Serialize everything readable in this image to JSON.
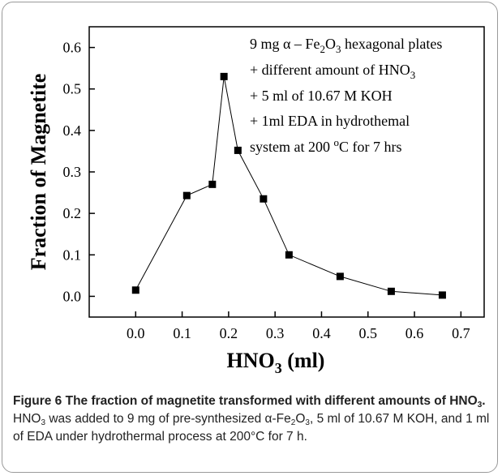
{
  "chart_data": {
    "type": "line",
    "xlabel": "HNO3 (ml)",
    "ylabel": "Fraction of Magnetite",
    "xlim": [
      -0.1,
      0.75
    ],
    "ylim": [
      -0.05,
      0.65
    ],
    "x_ticks": [
      "0.0",
      "0.1",
      "0.2",
      "0.3",
      "0.4",
      "0.5",
      "0.6",
      "0.7"
    ],
    "y_ticks": [
      "0.0",
      "0.1",
      "0.2",
      "0.3",
      "0.4",
      "0.5",
      "0.6"
    ],
    "x": [
      0.0,
      0.11,
      0.165,
      0.19,
      0.22,
      0.275,
      0.33,
      0.44,
      0.55,
      0.66
    ],
    "y": [
      0.015,
      0.243,
      0.27,
      0.53,
      0.352,
      0.235,
      0.1,
      0.048,
      0.012,
      0.003
    ],
    "marker": "square",
    "color": "#000000",
    "annotation": {
      "line1": "9 mg α – Fe2O3 hexagonal plates",
      "line2": "+ different amount of HNO3",
      "line3": "+ 5 ml of 10.67 M KOH",
      "line4": "+ 1ml EDA in hydrothemal",
      "line5": "system at 200 °C for 7 hrs"
    }
  },
  "caption": {
    "title": "Figure 6 The fraction of magnetite transformed with different amounts of HNO3.",
    "body": "HNO3 was added to 9 mg of pre-synthesized α-Fe2O3, 5 ml of 10.67 M KOH, and 1 ml of EDA under hydrothermal process at 200°C for 7 h."
  }
}
